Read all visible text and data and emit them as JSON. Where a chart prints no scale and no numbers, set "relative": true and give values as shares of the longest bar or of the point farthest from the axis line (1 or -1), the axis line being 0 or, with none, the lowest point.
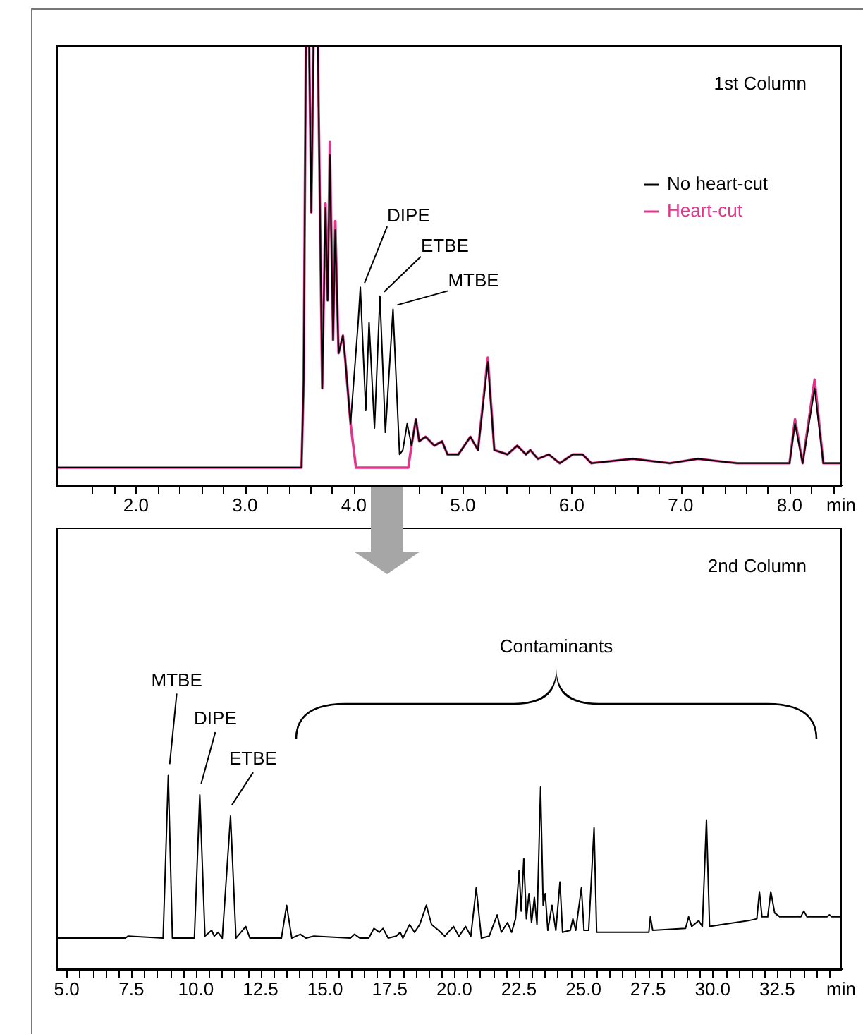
{
  "chart_data": [
    {
      "type": "line",
      "relative": true,
      "xlabel": "min",
      "legend": "top right",
      "xlim": [
        1.27,
        8.48
      ],
      "xticks": [
        {
          "value": 1.6,
          "label": null
        },
        {
          "value": 1.8,
          "label": null
        },
        {
          "value": 2,
          "label": "2.0"
        },
        {
          "value": 2.2,
          "label": null
        },
        {
          "value": 2.4,
          "label": null
        },
        {
          "value": 2.6,
          "label": null
        },
        {
          "value": 2.8,
          "label": null
        },
        {
          "value": 3,
          "label": "3.0"
        },
        {
          "value": 3.2,
          "label": null
        },
        {
          "value": 3.4,
          "label": null
        },
        {
          "value": 3.6,
          "label": null
        },
        {
          "value": 3.8,
          "label": null
        },
        {
          "value": 4,
          "label": "4.0"
        },
        {
          "value": 4.2,
          "label": null
        },
        {
          "value": 4.4,
          "label": null
        },
        {
          "value": 4.6,
          "label": null
        },
        {
          "value": 4.8,
          "label": null
        },
        {
          "value": 5,
          "label": "5.0"
        },
        {
          "value": 5.2,
          "label": null
        },
        {
          "value": 5.4,
          "label": null
        },
        {
          "value": 5.6,
          "label": null
        },
        {
          "value": 5.8,
          "label": null
        },
        {
          "value": 6,
          "label": "6.0"
        },
        {
          "value": 6.2,
          "label": null
        },
        {
          "value": 6.4,
          "label": null
        },
        {
          "value": 6.6,
          "label": null
        },
        {
          "value": 6.8,
          "label": null
        },
        {
          "value": 7,
          "label": "7.0"
        },
        {
          "value": 7.2,
          "label": null
        },
        {
          "value": 7.4,
          "label": null
        },
        {
          "value": 7.6,
          "label": null
        },
        {
          "value": 7.8,
          "label": null
        },
        {
          "value": 8,
          "label": "8.0"
        },
        {
          "value": 8.2,
          "label": null
        },
        {
          "value": 8.4,
          "label": null
        }
      ],
      "series": [
        {
          "name": "No heart-cut",
          "color": "#000000",
          "x": [
            1.27,
            3.52,
            3.54,
            3.56,
            3.59,
            3.61,
            3.63,
            3.67,
            3.71,
            3.74,
            3.76,
            3.78,
            3.81,
            3.83,
            3.86,
            3.88,
            3.9,
            3.92,
            3.97,
            4.04,
            4.06,
            4.11,
            4.14,
            4.19,
            4.24,
            4.29,
            4.36,
            4.42,
            4.45,
            4.49,
            4.53,
            4.57,
            4.6,
            4.66,
            4.74,
            4.81,
            4.86,
            4.96,
            5.07,
            5.14,
            5.23,
            5.29,
            5.41,
            5.5,
            5.58,
            5.62,
            5.69,
            5.79,
            5.89,
            6.01,
            6.1,
            6.18,
            6.56,
            6.9,
            7.16,
            7.52,
            7.86,
            8.0,
            8.05,
            8.12,
            8.23,
            8.31,
            8.48
          ],
          "values": [
            0.04,
            0.04,
            0.24,
            1,
            1,
            0.62,
            1,
            1,
            0.22,
            0.63,
            0.42,
            0.75,
            0.33,
            0.58,
            0.3,
            0.32,
            0.34,
            0.29,
            0.14,
            0.37,
            0.45,
            0.17,
            0.37,
            0.13,
            0.43,
            0.12,
            0.4,
            0.07,
            0.08,
            0.14,
            0.09,
            0.15,
            0.1,
            0.11,
            0.09,
            0.1,
            0.07,
            0.07,
            0.11,
            0.08,
            0.28,
            0.08,
            0.07,
            0.09,
            0.07,
            0.08,
            0.06,
            0.07,
            0.05,
            0.07,
            0.07,
            0.05,
            0.06,
            0.05,
            0.06,
            0.05,
            0.05,
            0.05,
            0.14,
            0.05,
            0.22,
            0.05,
            0.05
          ]
        },
        {
          "name": "Heart-cut",
          "color": "#e4348c",
          "x": [
            1.27,
            3.52,
            3.54,
            3.56,
            3.59,
            3.61,
            3.63,
            3.67,
            3.71,
            3.74,
            3.76,
            3.78,
            3.81,
            3.83,
            3.86,
            3.88,
            3.9,
            3.92,
            3.97,
            4.02,
            4.5,
            4.53,
            4.57,
            4.6,
            4.66,
            4.74,
            4.81,
            4.86,
            4.96,
            5.07,
            5.14,
            5.23,
            5.29,
            5.41,
            5.5,
            5.58,
            5.62,
            5.69,
            5.79,
            5.89,
            6.01,
            6.1,
            6.18,
            6.56,
            6.9,
            7.16,
            7.52,
            7.86,
            8.0,
            8.05,
            8.12,
            8.23,
            8.31,
            8.48
          ],
          "values": [
            0.04,
            0.04,
            0.24,
            1,
            1,
            0.62,
            1,
            1,
            0.22,
            0.64,
            0.42,
            0.78,
            0.33,
            0.6,
            0.3,
            0.32,
            0.34,
            0.29,
            0.14,
            0.04,
            0.04,
            0.09,
            0.15,
            0.1,
            0.11,
            0.09,
            0.1,
            0.07,
            0.07,
            0.11,
            0.08,
            0.29,
            0.08,
            0.07,
            0.09,
            0.07,
            0.08,
            0.06,
            0.07,
            0.05,
            0.07,
            0.07,
            0.05,
            0.06,
            0.05,
            0.06,
            0.05,
            0.05,
            0.05,
            0.15,
            0.05,
            0.24,
            0.05,
            0.05
          ]
        }
      ],
      "annotations": [
        "1st Column",
        {
          "text": "DIPE",
          "x": 4.06,
          "y": 0.45
        },
        {
          "text": "ETBE",
          "x": 4.24,
          "y": 0.43
        },
        {
          "text": "MTBE",
          "x": 4.36,
          "y": 0.4
        }
      ]
    },
    {
      "type": "line",
      "relative": true,
      "xlabel": "min",
      "xlim": [
        4.6,
        35.0
      ],
      "xticks": [
        {
          "value": 5,
          "label": "5.0"
        },
        {
          "value": 5.5,
          "label": null
        },
        {
          "value": 6,
          "label": null
        },
        {
          "value": 6.5,
          "label": null
        },
        {
          "value": 7,
          "label": null
        },
        {
          "value": 7.5,
          "label": "7.5"
        },
        {
          "value": 8,
          "label": null
        },
        {
          "value": 8.5,
          "label": null
        },
        {
          "value": 9,
          "label": null
        },
        {
          "value": 9.5,
          "label": null
        },
        {
          "value": 10,
          "label": "10.0"
        },
        {
          "value": 10.5,
          "label": null
        },
        {
          "value": 11,
          "label": null
        },
        {
          "value": 11.5,
          "label": null
        },
        {
          "value": 12,
          "label": null
        },
        {
          "value": 12.5,
          "label": "12.5"
        },
        {
          "value": 13,
          "label": null
        },
        {
          "value": 13.5,
          "label": null
        },
        {
          "value": 14,
          "label": null
        },
        {
          "value": 14.5,
          "label": null
        },
        {
          "value": 15,
          "label": "15.0"
        },
        {
          "value": 15.5,
          "label": null
        },
        {
          "value": 16,
          "label": null
        },
        {
          "value": 16.5,
          "label": null
        },
        {
          "value": 17,
          "label": null
        },
        {
          "value": 17.5,
          "label": "17.5"
        },
        {
          "value": 18,
          "label": null
        },
        {
          "value": 18.5,
          "label": null
        },
        {
          "value": 19,
          "label": null
        },
        {
          "value": 19.5,
          "label": null
        },
        {
          "value": 20,
          "label": "20.0"
        },
        {
          "value": 20.5,
          "label": null
        },
        {
          "value": 21,
          "label": null
        },
        {
          "value": 21.5,
          "label": null
        },
        {
          "value": 22,
          "label": null
        },
        {
          "value": 22.5,
          "label": "22.5"
        },
        {
          "value": 23,
          "label": null
        },
        {
          "value": 23.5,
          "label": null
        },
        {
          "value": 24,
          "label": null
        },
        {
          "value": 24.5,
          "label": null
        },
        {
          "value": 25,
          "label": "25.0"
        },
        {
          "value": 25.5,
          "label": null
        },
        {
          "value": 26,
          "label": null
        },
        {
          "value": 26.5,
          "label": null
        },
        {
          "value": 27,
          "label": null
        },
        {
          "value": 27.5,
          "label": "27.5"
        },
        {
          "value": 28,
          "label": null
        },
        {
          "value": 28.5,
          "label": null
        },
        {
          "value": 29,
          "label": null
        },
        {
          "value": 29.5,
          "label": null
        },
        {
          "value": 30,
          "label": "30.0"
        },
        {
          "value": 30.5,
          "label": null
        },
        {
          "value": 31,
          "label": null
        },
        {
          "value": 31.5,
          "label": null
        },
        {
          "value": 32,
          "label": null
        },
        {
          "value": 32.5,
          "label": "32.5"
        },
        {
          "value": 33,
          "label": null
        },
        {
          "value": 33.5,
          "label": null
        },
        {
          "value": 34,
          "label": null
        },
        {
          "value": 34.5,
          "label": null
        }
      ],
      "series": [
        {
          "color": "#000000",
          "x": [
            4.6,
            7.27,
            7.37,
            8.73,
            8.93,
            9.09,
            9.94,
            10.15,
            10.35,
            10.61,
            10.71,
            10.86,
            11.02,
            11.34,
            11.55,
            11.93,
            12.09,
            13.31,
            13.51,
            13.71,
            14.04,
            14.26,
            14.56,
            15.98,
            16.14,
            16.35,
            16.69,
            16.89,
            17.1,
            17.24,
            17.44,
            17.75,
            17.91,
            18.01,
            18.27,
            18.46,
            18.66,
            18.92,
            19.12,
            19.39,
            19.63,
            19.97,
            20.18,
            20.44,
            20.64,
            20.85,
            21.05,
            21.35,
            21.66,
            21.82,
            22.06,
            22.22,
            22.37,
            22.51,
            22.59,
            22.69,
            22.79,
            22.89,
            22.99,
            23.1,
            23.2,
            23.34,
            23.44,
            23.52,
            23.62,
            23.78,
            23.93,
            24.09,
            24.19,
            24.49,
            24.59,
            24.7,
            24.8,
            24.92,
            25.02,
            25.2,
            25.41,
            25.51,
            26.32,
            27.53,
            27.59,
            27.68,
            28.95,
            29.07,
            29.19,
            29.46,
            29.6,
            29.76,
            29.88,
            30.37,
            31.38,
            31.71,
            31.81,
            31.91,
            32.13,
            32.25,
            32.4,
            32.6,
            33.41,
            33.53,
            33.65,
            34.42,
            34.52,
            34.62,
            35.0
          ],
          "values": [
            0.16,
            0.16,
            0.17,
            0.16,
            1,
            0.16,
            0.16,
            0.9,
            0.17,
            0.2,
            0.17,
            0.19,
            0.16,
            0.79,
            0.16,
            0.22,
            0.16,
            0.16,
            0.33,
            0.16,
            0.18,
            0.16,
            0.17,
            0.16,
            0.18,
            0.16,
            0.16,
            0.21,
            0.19,
            0.21,
            0.16,
            0.17,
            0.19,
            0.16,
            0.23,
            0.19,
            0.23,
            0.33,
            0.23,
            0.2,
            0.17,
            0.22,
            0.17,
            0.22,
            0.17,
            0.42,
            0.16,
            0.17,
            0.28,
            0.19,
            0.24,
            0.19,
            0.26,
            0.51,
            0.3,
            0.57,
            0.26,
            0.39,
            0.24,
            0.37,
            0.23,
            0.94,
            0.33,
            0.39,
            0.2,
            0.33,
            0.2,
            0.45,
            0.19,
            0.2,
            0.26,
            0.2,
            0.3,
            0.42,
            0.2,
            0.2,
            0.73,
            0.19,
            0.19,
            0.19,
            0.27,
            0.2,
            0.21,
            0.27,
            0.22,
            0.25,
            0.22,
            0.77,
            0.22,
            0.23,
            0.25,
            0.26,
            0.4,
            0.27,
            0.27,
            0.4,
            0.29,
            0.27,
            0.27,
            0.3,
            0.27,
            0.27,
            0.28,
            0.27,
            0.27
          ]
        }
      ],
      "annotations": [
        "2nd Column",
        "Contaminants",
        {
          "text": "MTBE",
          "x": 8.93,
          "y": 1
        },
        {
          "text": "DIPE",
          "x": 10.15,
          "y": 0.9
        },
        {
          "text": "ETBE",
          "x": 11.34,
          "y": 0.79
        }
      ]
    }
  ]
}
